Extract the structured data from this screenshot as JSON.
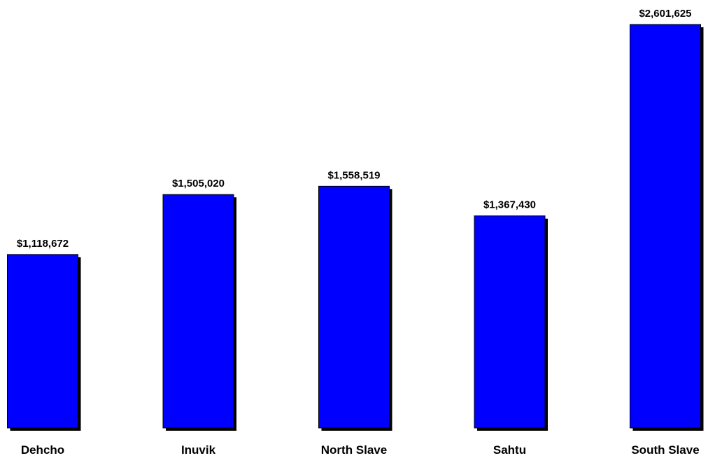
{
  "chart_data": {
    "type": "bar",
    "categories": [
      "Dehcho",
      "Inuvik",
      "North Slave",
      "Sahtu",
      "South Slave"
    ],
    "values": [
      1118672,
      1505020,
      1558519,
      1367430,
      2601625
    ],
    "data_labels": [
      "$1,118,672",
      "$1,505,020",
      "$1,558,519",
      "$1,367,430",
      "$2,601,625"
    ],
    "title": "",
    "xlabel": "",
    "ylabel": "",
    "ylim": [
      0,
      2601625
    ],
    "grid": false,
    "legend": "none",
    "bar_color": "#0000FF",
    "shadow_color": "#000000"
  }
}
